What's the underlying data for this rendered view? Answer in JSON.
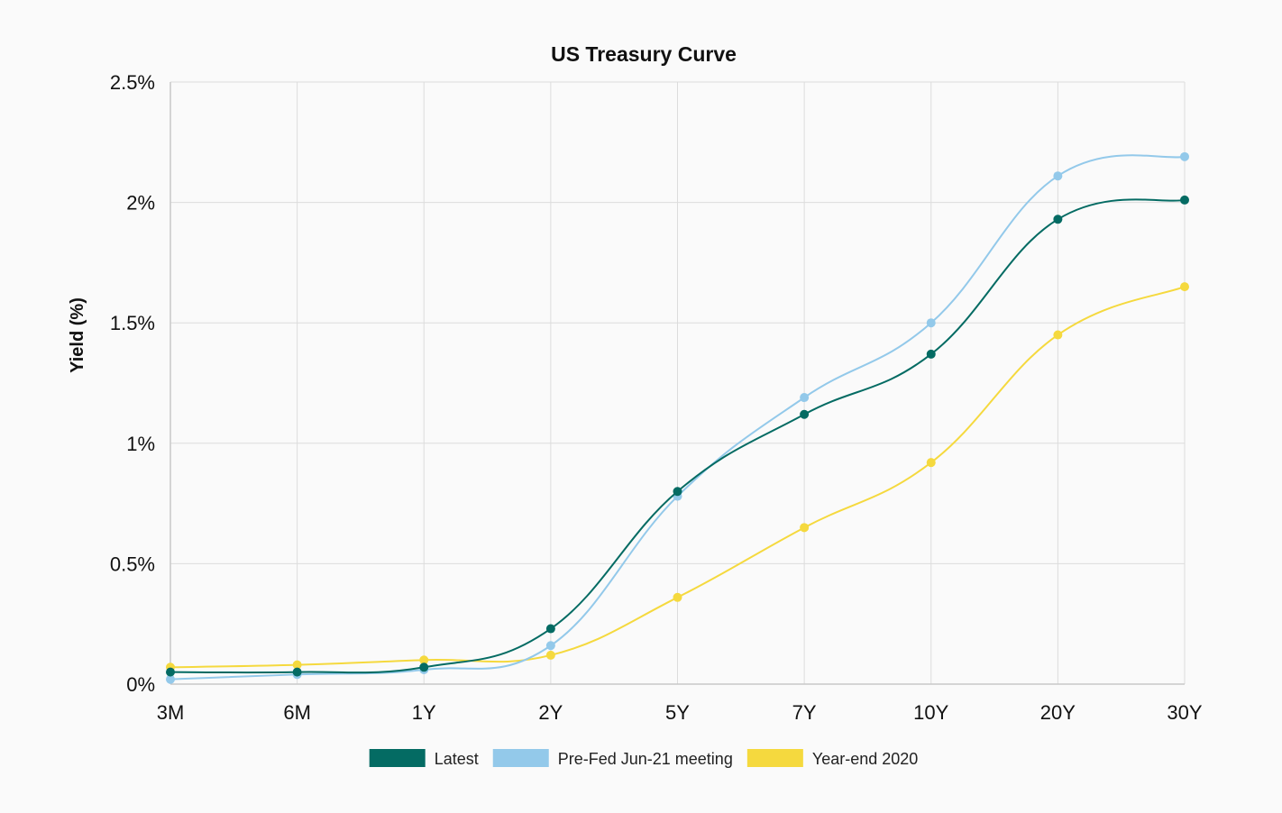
{
  "chart_data": {
    "type": "line",
    "title": "US Treasury Curve",
    "xlabel": "",
    "ylabel": "Yield (%)",
    "categories": [
      "3M",
      "6M",
      "1Y",
      "2Y",
      "5Y",
      "7Y",
      "10Y",
      "20Y",
      "30Y"
    ],
    "ylim": [
      0,
      2.5
    ],
    "yticks": [
      0,
      0.5,
      1,
      1.5,
      2,
      2.5
    ],
    "ytick_labels": [
      "0%",
      "0.5%",
      "1%",
      "1.5%",
      "2%",
      "2.5%"
    ],
    "grid": true,
    "legend_position": "bottom",
    "smooth": true,
    "series": [
      {
        "name": "Latest",
        "color": "#046b63",
        "values": [
          0.05,
          0.05,
          0.07,
          0.23,
          0.8,
          1.12,
          1.37,
          1.93,
          2.01
        ]
      },
      {
        "name": "Pre-Fed Jun-21 meeting",
        "color": "#93c9ea",
        "values": [
          0.02,
          0.04,
          0.06,
          0.16,
          0.78,
          1.19,
          1.5,
          2.11,
          2.19
        ]
      },
      {
        "name": "Year-end 2020",
        "color": "#f5d93e",
        "values": [
          0.07,
          0.08,
          0.1,
          0.12,
          0.36,
          0.65,
          0.92,
          1.45,
          1.65
        ]
      }
    ]
  }
}
